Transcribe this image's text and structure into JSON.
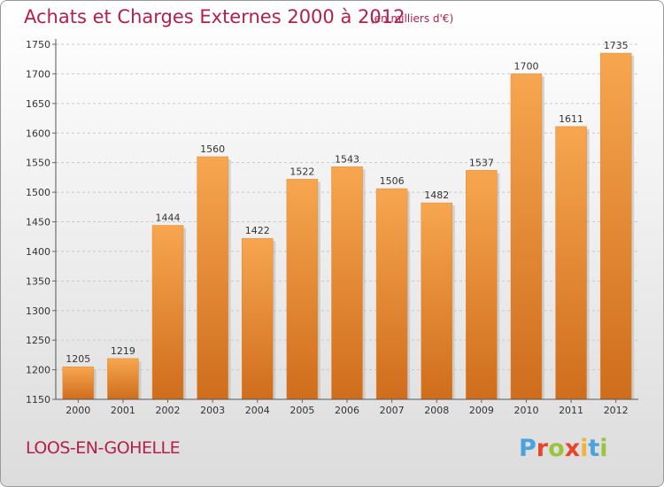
{
  "chart_data": {
    "type": "bar",
    "title": "Achats et Charges Externes 2000 à 2012",
    "subtitle": "(en milliers d'€)",
    "categories": [
      "2000",
      "2001",
      "2002",
      "2003",
      "2004",
      "2005",
      "2006",
      "2007",
      "2008",
      "2009",
      "2010",
      "2011",
      "2012"
    ],
    "values": [
      1205,
      1219,
      1444,
      1560,
      1422,
      1522,
      1543,
      1506,
      1482,
      1537,
      1700,
      1611,
      1735
    ],
    "ylim": [
      1150,
      1750
    ],
    "yticks": [
      1150,
      1200,
      1250,
      1300,
      1350,
      1400,
      1450,
      1500,
      1550,
      1600,
      1650,
      1700,
      1750
    ],
    "grid": true,
    "bar_color": "#f0943a",
    "bar_color_dark": "#d97220"
  },
  "footer": {
    "city": "LOOS-EN-GOHELLE",
    "logo_letters": [
      "P",
      "r",
      "o",
      "x",
      "i",
      "t",
      "i"
    ],
    "logo_colors": [
      "#4aa3df",
      "#e8452c",
      "#9ac43c",
      "#e8452c",
      "#f2b33d",
      "#4aa3df",
      "#9ac43c"
    ]
  }
}
